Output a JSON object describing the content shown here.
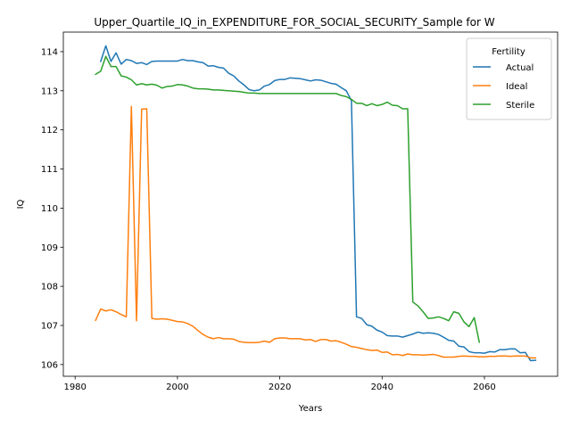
{
  "chart_data": {
    "type": "line",
    "title": "Upper_Quartile_IQ_in_EXPENDITURE_FOR_SOCIAL_SECURITY_Sample for W",
    "xlabel": "Years",
    "ylabel": "IQ",
    "xlim": [
      1984,
      2070
    ],
    "ylim": [
      105.7,
      114.5
    ],
    "x_ticks": [
      1980,
      2000,
      2020,
      2040,
      2060
    ],
    "y_ticks": [
      106,
      107,
      108,
      109,
      110,
      111,
      112,
      113,
      114
    ],
    "legend": {
      "title": "Fertility",
      "position": "top-right"
    },
    "grid": false,
    "series": [
      {
        "name": "Actual",
        "color": "#1f77b4",
        "points": [
          [
            1985,
            113.75
          ],
          [
            1986,
            114.15
          ],
          [
            1987,
            113.75
          ],
          [
            1988,
            113.97
          ],
          [
            1989,
            113.68
          ],
          [
            1990,
            113.8
          ],
          [
            1991,
            113.77
          ],
          [
            1992,
            113.7
          ],
          [
            1993,
            113.72
          ],
          [
            1994,
            113.67
          ],
          [
            1995,
            113.75
          ],
          [
            1996,
            113.76
          ],
          [
            1997,
            113.76
          ],
          [
            1998,
            113.76
          ],
          [
            1999,
            113.76
          ],
          [
            2000,
            113.76
          ],
          [
            2001,
            113.8
          ],
          [
            2002,
            113.77
          ],
          [
            2003,
            113.77
          ],
          [
            2004,
            113.74
          ],
          [
            2005,
            113.72
          ],
          [
            2006,
            113.63
          ],
          [
            2007,
            113.64
          ],
          [
            2008,
            113.6
          ],
          [
            2009,
            113.58
          ],
          [
            2010,
            113.45
          ],
          [
            2011,
            113.38
          ],
          [
            2012,
            113.25
          ],
          [
            2013,
            113.15
          ],
          [
            2014,
            113.03
          ],
          [
            2015,
            113.0
          ],
          [
            2016,
            113.02
          ],
          [
            2017,
            113.12
          ],
          [
            2018,
            113.16
          ],
          [
            2019,
            113.26
          ],
          [
            2020,
            113.29
          ],
          [
            2021,
            113.29
          ],
          [
            2022,
            113.33
          ],
          [
            2023,
            113.32
          ],
          [
            2024,
            113.31
          ],
          [
            2025,
            113.28
          ],
          [
            2026,
            113.25
          ],
          [
            2027,
            113.28
          ],
          [
            2028,
            113.27
          ],
          [
            2029,
            113.23
          ],
          [
            2030,
            113.19
          ],
          [
            2031,
            113.17
          ],
          [
            2032,
            113.08
          ],
          [
            2033,
            113.0
          ],
          [
            2034,
            112.75
          ],
          [
            2035,
            107.22
          ],
          [
            2036,
            107.18
          ],
          [
            2037,
            107.02
          ],
          [
            2038,
            106.98
          ],
          [
            2039,
            106.88
          ],
          [
            2040,
            106.83
          ],
          [
            2041,
            106.74
          ],
          [
            2042,
            106.73
          ],
          [
            2043,
            106.73
          ],
          [
            2044,
            106.7
          ],
          [
            2045,
            106.74
          ],
          [
            2046,
            106.78
          ],
          [
            2047,
            106.83
          ],
          [
            2048,
            106.8
          ],
          [
            2049,
            106.81
          ],
          [
            2050,
            106.8
          ],
          [
            2051,
            106.77
          ],
          [
            2052,
            106.7
          ],
          [
            2053,
            106.62
          ],
          [
            2054,
            106.6
          ],
          [
            2055,
            106.47
          ],
          [
            2056,
            106.45
          ],
          [
            2057,
            106.33
          ],
          [
            2058,
            106.3
          ],
          [
            2059,
            106.3
          ],
          [
            2060,
            106.29
          ],
          [
            2061,
            106.33
          ],
          [
            2062,
            106.32
          ],
          [
            2063,
            106.38
          ],
          [
            2064,
            106.38
          ],
          [
            2065,
            106.4
          ],
          [
            2066,
            106.4
          ],
          [
            2067,
            106.3
          ],
          [
            2068,
            106.31
          ],
          [
            2069,
            106.1
          ],
          [
            2070,
            106.11
          ]
        ]
      },
      {
        "name": "Ideal",
        "color": "#ff7f0e",
        "points": [
          [
            1984,
            107.13
          ],
          [
            1985,
            107.42
          ],
          [
            1986,
            107.37
          ],
          [
            1987,
            107.4
          ],
          [
            1988,
            107.35
          ],
          [
            1989,
            107.28
          ],
          [
            1990,
            107.22
          ],
          [
            1991,
            112.6
          ],
          [
            1992,
            107.12
          ],
          [
            1993,
            112.53
          ],
          [
            1994,
            112.54
          ],
          [
            1995,
            107.18
          ],
          [
            1996,
            107.16
          ],
          [
            1997,
            107.17
          ],
          [
            1998,
            107.16
          ],
          [
            1999,
            107.13
          ],
          [
            2000,
            107.1
          ],
          [
            2001,
            107.09
          ],
          [
            2002,
            107.05
          ],
          [
            2003,
            106.98
          ],
          [
            2004,
            106.87
          ],
          [
            2005,
            106.77
          ],
          [
            2006,
            106.7
          ],
          [
            2007,
            106.66
          ],
          [
            2008,
            106.69
          ],
          [
            2009,
            106.66
          ],
          [
            2010,
            106.66
          ],
          [
            2011,
            106.65
          ],
          [
            2012,
            106.59
          ],
          [
            2013,
            106.57
          ],
          [
            2014,
            106.56
          ],
          [
            2015,
            106.56
          ],
          [
            2016,
            106.57
          ],
          [
            2017,
            106.6
          ],
          [
            2018,
            106.57
          ],
          [
            2019,
            106.66
          ],
          [
            2020,
            106.68
          ],
          [
            2021,
            106.68
          ],
          [
            2022,
            106.66
          ],
          [
            2023,
            106.66
          ],
          [
            2024,
            106.66
          ],
          [
            2025,
            106.63
          ],
          [
            2026,
            106.64
          ],
          [
            2027,
            106.59
          ],
          [
            2028,
            106.64
          ],
          [
            2029,
            106.64
          ],
          [
            2030,
            106.6
          ],
          [
            2031,
            106.61
          ],
          [
            2032,
            106.57
          ],
          [
            2033,
            106.52
          ],
          [
            2034,
            106.46
          ],
          [
            2035,
            106.44
          ],
          [
            2036,
            106.41
          ],
          [
            2037,
            106.38
          ],
          [
            2038,
            106.36
          ],
          [
            2039,
            106.37
          ],
          [
            2040,
            106.31
          ],
          [
            2041,
            106.32
          ],
          [
            2042,
            106.25
          ],
          [
            2043,
            106.26
          ],
          [
            2044,
            106.23
          ],
          [
            2045,
            106.27
          ],
          [
            2046,
            106.25
          ],
          [
            2047,
            106.25
          ],
          [
            2048,
            106.24
          ],
          [
            2049,
            106.25
          ],
          [
            2050,
            106.26
          ],
          [
            2051,
            106.23
          ],
          [
            2052,
            106.19
          ],
          [
            2053,
            106.19
          ],
          [
            2054,
            106.19
          ],
          [
            2055,
            106.21
          ],
          [
            2056,
            106.22
          ],
          [
            2057,
            106.21
          ],
          [
            2058,
            106.21
          ],
          [
            2059,
            106.2
          ],
          [
            2060,
            106.2
          ],
          [
            2061,
            106.21
          ],
          [
            2062,
            106.21
          ],
          [
            2063,
            106.22
          ],
          [
            2064,
            106.22
          ],
          [
            2065,
            106.21
          ],
          [
            2066,
            106.22
          ],
          [
            2067,
            106.22
          ],
          [
            2068,
            106.22
          ],
          [
            2069,
            106.17
          ],
          [
            2070,
            106.17
          ]
        ]
      },
      {
        "name": "Sterile",
        "color": "#2ca02c",
        "points": [
          [
            1984,
            113.42
          ],
          [
            1985,
            113.5
          ],
          [
            1986,
            113.88
          ],
          [
            1987,
            113.62
          ],
          [
            1988,
            113.62
          ],
          [
            1989,
            113.38
          ],
          [
            1990,
            113.35
          ],
          [
            1991,
            113.28
          ],
          [
            1992,
            113.15
          ],
          [
            1993,
            113.18
          ],
          [
            1994,
            113.15
          ],
          [
            1995,
            113.17
          ],
          [
            1996,
            113.14
          ],
          [
            1997,
            113.07
          ],
          [
            1998,
            113.11
          ],
          [
            1999,
            113.12
          ],
          [
            2000,
            113.16
          ],
          [
            2001,
            113.15
          ],
          [
            2002,
            113.12
          ],
          [
            2003,
            113.07
          ],
          [
            2004,
            113.05
          ],
          [
            2005,
            113.05
          ],
          [
            2006,
            113.04
          ],
          [
            2007,
            113.02
          ],
          [
            2008,
            113.02
          ],
          [
            2009,
            113.01
          ],
          [
            2010,
            113.0
          ],
          [
            2011,
            112.99
          ],
          [
            2012,
            112.98
          ],
          [
            2013,
            112.96
          ],
          [
            2014,
            112.94
          ],
          [
            2015,
            112.94
          ],
          [
            2016,
            112.93
          ],
          [
            2017,
            112.93
          ],
          [
            2018,
            112.93
          ],
          [
            2019,
            112.93
          ],
          [
            2020,
            112.93
          ],
          [
            2021,
            112.93
          ],
          [
            2022,
            112.93
          ],
          [
            2023,
            112.93
          ],
          [
            2024,
            112.93
          ],
          [
            2025,
            112.93
          ],
          [
            2026,
            112.93
          ],
          [
            2027,
            112.93
          ],
          [
            2028,
            112.93
          ],
          [
            2029,
            112.93
          ],
          [
            2030,
            112.93
          ],
          [
            2031,
            112.93
          ],
          [
            2032,
            112.88
          ],
          [
            2033,
            112.85
          ],
          [
            2034,
            112.78
          ],
          [
            2035,
            112.68
          ],
          [
            2036,
            112.68
          ],
          [
            2037,
            112.62
          ],
          [
            2038,
            112.67
          ],
          [
            2039,
            112.62
          ],
          [
            2040,
            112.65
          ],
          [
            2041,
            112.71
          ],
          [
            2042,
            112.63
          ],
          [
            2043,
            112.62
          ],
          [
            2044,
            112.54
          ],
          [
            2045,
            112.54
          ],
          [
            2046,
            107.6
          ],
          [
            2047,
            107.5
          ],
          [
            2048,
            107.35
          ],
          [
            2049,
            107.18
          ],
          [
            2050,
            107.19
          ],
          [
            2051,
            107.22
          ],
          [
            2052,
            107.18
          ],
          [
            2053,
            107.12
          ],
          [
            2054,
            107.35
          ],
          [
            2055,
            107.31
          ],
          [
            2056,
            107.09
          ],
          [
            2057,
            106.97
          ],
          [
            2058,
            107.2
          ],
          [
            2059,
            106.57
          ]
        ]
      }
    ]
  }
}
